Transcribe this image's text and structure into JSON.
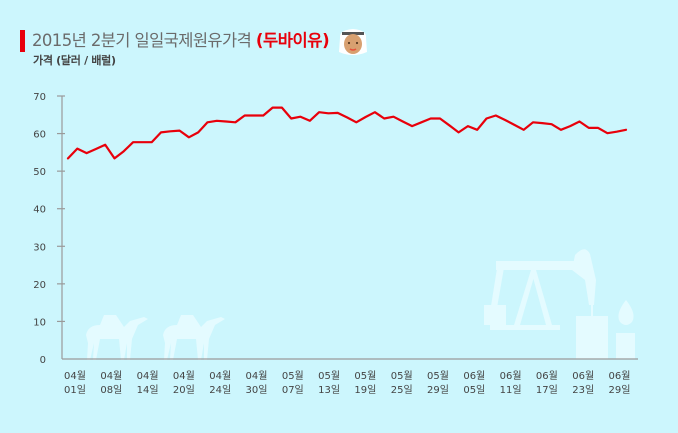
{
  "header": {
    "title_main": "2015년 2분기 일일국제원유가격 ",
    "title_highlight": "(두바이유)",
    "subtitle": "가격 (달러 / 배럴)",
    "avatar_icon": "arab-man-avatar-icon"
  },
  "colors": {
    "background": "#ccf6fd",
    "accent": "#e8000b",
    "line": "#e8000b",
    "axis": "#9a9a9a",
    "decoration": "#e4fbff"
  },
  "chart_data": {
    "type": "line",
    "title": "2015년 2분기 일일국제원유가격 (두바이유)",
    "xlabel": "",
    "ylabel": "가격 (달러 / 배럴)",
    "ylim": [
      0,
      70
    ],
    "yticks": [
      0,
      10,
      20,
      30,
      40,
      50,
      60,
      70
    ],
    "grid": false,
    "legend": "none",
    "x_tick_labels": [
      {
        "month": "04월",
        "day": "01일"
      },
      {
        "month": "04월",
        "day": "08일"
      },
      {
        "month": "04월",
        "day": "14일"
      },
      {
        "month": "04월",
        "day": "20일"
      },
      {
        "month": "04월",
        "day": "24일"
      },
      {
        "month": "04월",
        "day": "30일"
      },
      {
        "month": "05월",
        "day": "07일"
      },
      {
        "month": "05월",
        "day": "13일"
      },
      {
        "month": "05월",
        "day": "19일"
      },
      {
        "month": "05월",
        "day": "25일"
      },
      {
        "month": "05월",
        "day": "29일"
      },
      {
        "month": "06월",
        "day": "05일"
      },
      {
        "month": "06월",
        "day": "11일"
      },
      {
        "month": "06월",
        "day": "17일"
      },
      {
        "month": "06월",
        "day": "23일"
      },
      {
        "month": "06월",
        "day": "29일"
      }
    ],
    "series": [
      {
        "name": "두바이유",
        "values": [
          53.4,
          56.0,
          54.8,
          55.9,
          57.0,
          53.4,
          55.3,
          57.7,
          57.7,
          57.7,
          60.3,
          60.6,
          60.8,
          59.0,
          60.3,
          63.0,
          63.4,
          63.2,
          63.0,
          64.8,
          64.8,
          64.8,
          66.9,
          66.9,
          64.0,
          64.5,
          63.4,
          65.7,
          65.4,
          65.5,
          64.3,
          63.0,
          64.4,
          65.7,
          64.0,
          64.5,
          63.2,
          62.0,
          63.0,
          64.0,
          64.0,
          62.2,
          60.3,
          62.0,
          61.0,
          64.0,
          64.8,
          63.6,
          62.3,
          61.0,
          63.0,
          62.8,
          62.5,
          61.0,
          62.0,
          63.2,
          61.5,
          61.5,
          60.1,
          60.5,
          61.0
        ]
      }
    ]
  }
}
